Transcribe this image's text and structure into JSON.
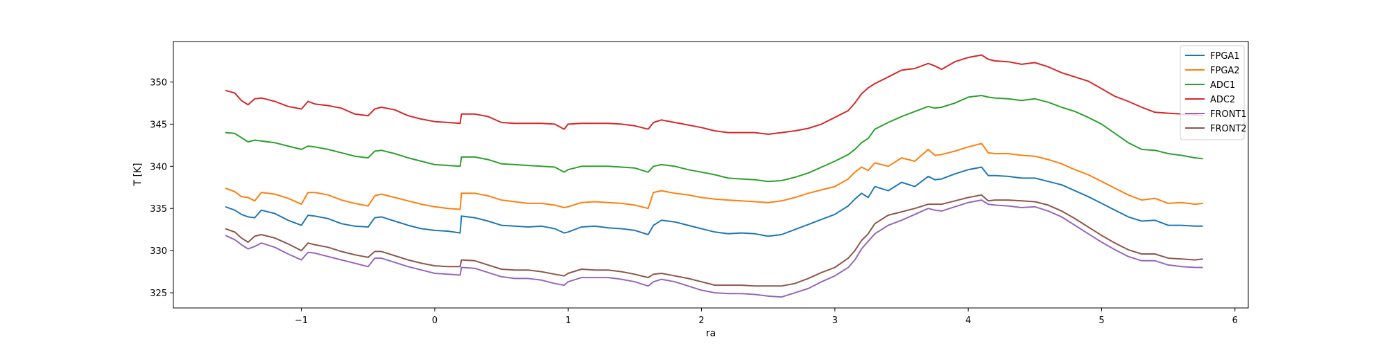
{
  "chart_data": {
    "type": "line",
    "title": "",
    "xlabel": "ra",
    "ylabel": "T [K]",
    "xlim": [
      -1.96,
      6.1
    ],
    "ylim": [
      323.2,
      354.8
    ],
    "xticks": [
      -1,
      0,
      1,
      2,
      3,
      4,
      5,
      6
    ],
    "yticks": [
      325,
      330,
      335,
      340,
      345,
      350
    ],
    "legend_position": "top-right",
    "grid": false,
    "x": [
      -1.57,
      -1.5,
      -1.45,
      -1.4,
      -1.35,
      -1.3,
      -1.2,
      -1.1,
      -1.0,
      -0.95,
      -0.9,
      -0.8,
      -0.7,
      -0.6,
      -0.5,
      -0.45,
      -0.4,
      -0.3,
      -0.2,
      -0.1,
      0.0,
      0.1,
      0.19,
      0.2,
      0.3,
      0.4,
      0.5,
      0.6,
      0.7,
      0.8,
      0.9,
      0.97,
      1.0,
      1.1,
      1.2,
      1.3,
      1.4,
      1.5,
      1.6,
      1.64,
      1.7,
      1.8,
      1.9,
      2.0,
      2.1,
      2.2,
      2.3,
      2.4,
      2.5,
      2.6,
      2.7,
      2.8,
      2.9,
      3.0,
      3.1,
      3.15,
      3.2,
      3.25,
      3.3,
      3.4,
      3.5,
      3.6,
      3.7,
      3.75,
      3.8,
      3.9,
      4.0,
      4.1,
      4.15,
      4.2,
      4.3,
      4.4,
      4.5,
      4.6,
      4.7,
      4.8,
      4.9,
      5.0,
      5.1,
      5.2,
      5.3,
      5.4,
      5.5,
      5.6,
      5.7,
      5.76
    ],
    "series": [
      {
        "name": "FPGA1",
        "color": "#1f77b4",
        "values": [
          335.2,
          334.8,
          334.3,
          334.0,
          333.9,
          334.8,
          334.4,
          333.6,
          333.0,
          334.2,
          334.1,
          333.8,
          333.2,
          332.9,
          332.8,
          333.9,
          334.0,
          333.5,
          333.0,
          332.6,
          332.4,
          332.3,
          332.1,
          334.1,
          333.9,
          333.5,
          333.0,
          332.9,
          332.8,
          332.9,
          332.6,
          332.1,
          332.2,
          332.8,
          332.9,
          332.7,
          332.6,
          332.4,
          331.9,
          333.0,
          333.6,
          333.4,
          333.0,
          332.6,
          332.2,
          332.0,
          332.1,
          332.0,
          331.7,
          331.9,
          332.5,
          333.1,
          333.7,
          334.3,
          335.3,
          336.1,
          336.8,
          336.3,
          337.6,
          337.1,
          338.1,
          337.6,
          338.8,
          338.4,
          338.5,
          339.1,
          339.6,
          339.9,
          338.9,
          338.9,
          338.8,
          338.6,
          338.6,
          338.2,
          337.8,
          337.1,
          336.4,
          335.6,
          334.8,
          334.0,
          333.5,
          333.6,
          333.0,
          333.0,
          332.9,
          332.9
        ]
      },
      {
        "name": "FPGA2",
        "color": "#ff7f0e",
        "values": [
          337.4,
          337.0,
          336.4,
          336.3,
          335.9,
          336.9,
          336.7,
          336.2,
          335.5,
          336.9,
          336.9,
          336.6,
          336.0,
          335.6,
          335.3,
          336.5,
          336.7,
          336.3,
          335.9,
          335.5,
          335.2,
          335.0,
          334.9,
          336.8,
          336.8,
          336.5,
          336.0,
          335.8,
          335.6,
          335.6,
          335.4,
          335.1,
          335.2,
          335.7,
          335.8,
          335.7,
          335.6,
          335.4,
          335.0,
          336.9,
          337.1,
          336.8,
          336.6,
          336.3,
          336.1,
          336.0,
          335.9,
          335.8,
          335.7,
          335.9,
          336.3,
          336.8,
          337.2,
          337.6,
          338.5,
          339.3,
          339.9,
          339.5,
          340.4,
          340.0,
          341.0,
          340.6,
          342.0,
          341.3,
          341.4,
          341.8,
          342.3,
          342.7,
          341.6,
          341.5,
          341.5,
          341.3,
          341.2,
          340.8,
          340.3,
          339.6,
          339.0,
          338.2,
          337.4,
          336.6,
          336.0,
          336.2,
          335.6,
          335.7,
          335.5,
          335.6
        ]
      },
      {
        "name": "ADC1",
        "color": "#2ca02c",
        "values": [
          344.0,
          343.9,
          343.4,
          342.9,
          343.1,
          343.0,
          342.8,
          342.4,
          342.0,
          342.4,
          342.3,
          342.0,
          341.6,
          341.2,
          341.0,
          341.8,
          341.9,
          341.5,
          341.0,
          340.6,
          340.2,
          340.1,
          340.0,
          341.1,
          341.1,
          340.8,
          340.3,
          340.2,
          340.1,
          340.0,
          339.9,
          339.3,
          339.6,
          340.0,
          340.0,
          340.0,
          339.9,
          339.8,
          339.3,
          340.0,
          340.2,
          340.0,
          339.6,
          339.3,
          339.0,
          338.6,
          338.5,
          338.4,
          338.2,
          338.3,
          338.7,
          339.2,
          339.9,
          340.6,
          341.4,
          342.0,
          342.8,
          343.3,
          344.4,
          345.2,
          345.9,
          346.5,
          347.1,
          346.9,
          347.0,
          347.5,
          348.2,
          348.4,
          348.2,
          348.1,
          348.0,
          347.8,
          348.0,
          347.6,
          347.0,
          346.5,
          345.8,
          345.0,
          343.9,
          342.8,
          342.0,
          341.9,
          341.5,
          341.3,
          341.0,
          340.9
        ]
      },
      {
        "name": "ADC2",
        "color": "#d62728",
        "values": [
          349.0,
          348.7,
          347.8,
          347.3,
          348.0,
          348.1,
          347.7,
          347.1,
          346.8,
          347.7,
          347.4,
          347.2,
          346.9,
          346.2,
          346.0,
          346.8,
          347.0,
          346.7,
          346.0,
          345.6,
          345.3,
          345.2,
          345.1,
          346.2,
          346.2,
          345.9,
          345.2,
          345.1,
          345.1,
          345.1,
          345.0,
          344.4,
          345.0,
          345.1,
          345.1,
          345.1,
          345.0,
          344.8,
          344.4,
          345.2,
          345.5,
          345.2,
          344.9,
          344.6,
          344.2,
          344.0,
          344.0,
          344.0,
          343.8,
          344.0,
          344.2,
          344.5,
          345.0,
          345.8,
          346.6,
          347.5,
          348.6,
          349.3,
          349.8,
          350.6,
          351.4,
          351.6,
          352.2,
          351.9,
          351.5,
          352.4,
          352.9,
          353.2,
          352.7,
          352.5,
          352.4,
          352.1,
          352.3,
          351.8,
          351.1,
          350.6,
          350.1,
          349.2,
          348.3,
          347.7,
          347.0,
          346.4,
          346.3,
          346.2,
          346.1,
          346.0
        ]
      },
      {
        "name": "FRONT1",
        "color": "#9467bd",
        "values": [
          331.8,
          331.3,
          330.7,
          330.2,
          330.5,
          330.9,
          330.4,
          329.6,
          328.9,
          329.8,
          329.7,
          329.3,
          328.9,
          328.5,
          328.1,
          329.1,
          329.1,
          328.6,
          328.1,
          327.7,
          327.3,
          327.2,
          327.1,
          328.0,
          327.9,
          327.4,
          326.9,
          326.7,
          326.7,
          326.5,
          326.1,
          325.9,
          326.3,
          326.8,
          326.8,
          326.8,
          326.6,
          326.3,
          325.8,
          326.3,
          326.6,
          326.3,
          325.8,
          325.3,
          325.0,
          324.9,
          324.9,
          324.8,
          324.6,
          324.5,
          325.0,
          325.5,
          326.3,
          327.0,
          328.0,
          328.9,
          330.2,
          331.1,
          332.0,
          333.0,
          333.6,
          334.3,
          335.0,
          334.8,
          334.7,
          335.2,
          335.7,
          336.0,
          335.5,
          335.4,
          335.3,
          335.1,
          335.2,
          334.7,
          334.0,
          333.0,
          332.0,
          331.0,
          330.1,
          329.3,
          328.8,
          328.8,
          328.3,
          328.1,
          328.0,
          328.0
        ]
      },
      {
        "name": "FRONT2",
        "color": "#8c564b",
        "values": [
          332.6,
          332.2,
          331.5,
          331.0,
          331.7,
          331.9,
          331.5,
          330.8,
          330.0,
          330.9,
          330.7,
          330.4,
          329.9,
          329.5,
          329.2,
          329.9,
          329.9,
          329.4,
          328.9,
          328.5,
          328.2,
          328.1,
          328.1,
          328.9,
          328.8,
          328.3,
          327.8,
          327.7,
          327.7,
          327.5,
          327.2,
          327.0,
          327.3,
          327.8,
          327.7,
          327.7,
          327.5,
          327.2,
          326.8,
          327.2,
          327.3,
          327.0,
          326.7,
          326.3,
          325.9,
          325.9,
          325.9,
          325.8,
          325.8,
          325.8,
          326.1,
          326.7,
          327.4,
          328.0,
          329.1,
          330.0,
          331.2,
          332.0,
          333.2,
          334.2,
          334.6,
          335.0,
          335.5,
          335.5,
          335.5,
          335.9,
          336.3,
          336.6,
          335.9,
          336.0,
          336.0,
          335.9,
          335.8,
          335.4,
          334.7,
          333.8,
          332.8,
          331.8,
          330.9,
          330.1,
          329.6,
          329.6,
          329.1,
          329.0,
          328.9,
          329.0
        ]
      }
    ]
  }
}
